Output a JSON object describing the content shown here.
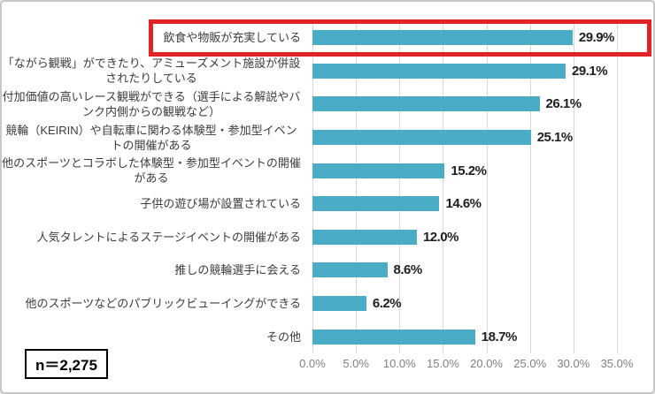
{
  "chart_data": {
    "type": "bar",
    "orientation": "horizontal",
    "title": "",
    "categories": [
      "飲食や物販が充実している",
      "「ながら観戦」ができたり、アミューズメント施設が併設されたりしている",
      "付加価値の高いレース観戦ができる（選手による解説やバンク内側からの観戦など）",
      "競輪（KEIRIN）や自転車に関わる体験型・参加型イベントの開催がある",
      "他のスポーツとコラボした体験型・参加型イベントの開催がある",
      "子供の遊び場が設置されている",
      "人気タレントによるステージイベントの開催がある",
      "推しの競輪選手に会える",
      "他のスポーツなどのパブリックビューイングができる",
      "その他"
    ],
    "values": [
      29.9,
      29.1,
      26.1,
      25.1,
      15.2,
      14.6,
      12.0,
      8.6,
      6.2,
      18.7
    ],
    "value_labels": [
      "29.9%",
      "29.1%",
      "26.1%",
      "25.1%",
      "15.2%",
      "14.6%",
      "12.0%",
      "8.6%",
      "6.2%",
      "18.7%"
    ],
    "x_ticks": [
      "0.0%",
      "5.0%",
      "10.0%",
      "15.0%",
      "20.0%",
      "25.0%",
      "30.0%",
      "35.0%"
    ],
    "xlim": [
      0,
      35
    ],
    "grid": true,
    "legend": false,
    "bar_color": "#4BACC6",
    "gridline_color": "#d9d9d9",
    "highlight_color": "#E12328",
    "highlighted_index": 0,
    "sample_size_label": "n＝2,275"
  }
}
